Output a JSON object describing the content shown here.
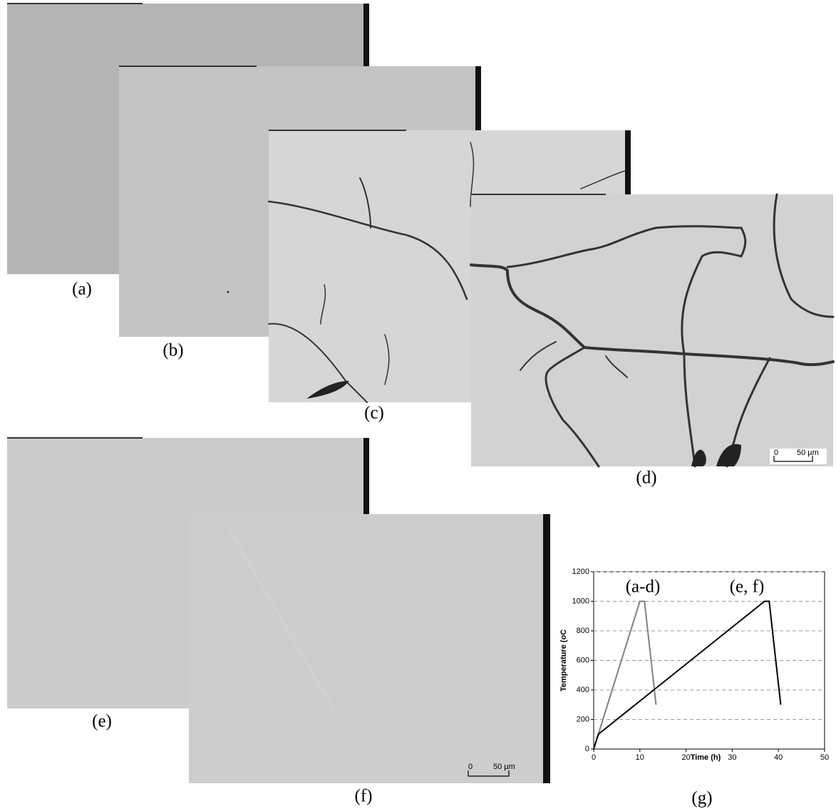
{
  "panels": [
    {
      "label": "(a)"
    },
    {
      "label": "(b)"
    },
    {
      "label": "(c)"
    },
    {
      "label": "(d)"
    },
    {
      "label": "(e)"
    },
    {
      "label": "(f)"
    },
    {
      "label": "(g)"
    }
  ],
  "scale_bars": [
    {
      "zero": "0",
      "length": "50 µm"
    },
    {
      "zero": "0",
      "length": "50 µm"
    }
  ],
  "chart_data": {
    "type": "line",
    "x_label": "Time (h)",
    "y_label": "Temperature (oC",
    "annotations": [
      "(a-d)",
      "(e, f)"
    ],
    "series": [
      {
        "color": "#808080",
        "x": [
          0,
          10,
          11,
          13.5
        ],
        "values": [
          0,
          1000,
          1000,
          300
        ]
      },
      {
        "color": "#000000",
        "x": [
          0,
          1,
          37,
          38,
          40.5
        ],
        "values": [
          0,
          100,
          1000,
          1000,
          300
        ]
      }
    ],
    "xlim": [
      0,
      50
    ],
    "ylim": [
      0,
      1200
    ],
    "xticks": [
      0,
      10,
      20,
      30,
      40,
      50
    ],
    "yticks": [
      0,
      200,
      400,
      600,
      800,
      1000,
      1200
    ],
    "grid": true
  }
}
